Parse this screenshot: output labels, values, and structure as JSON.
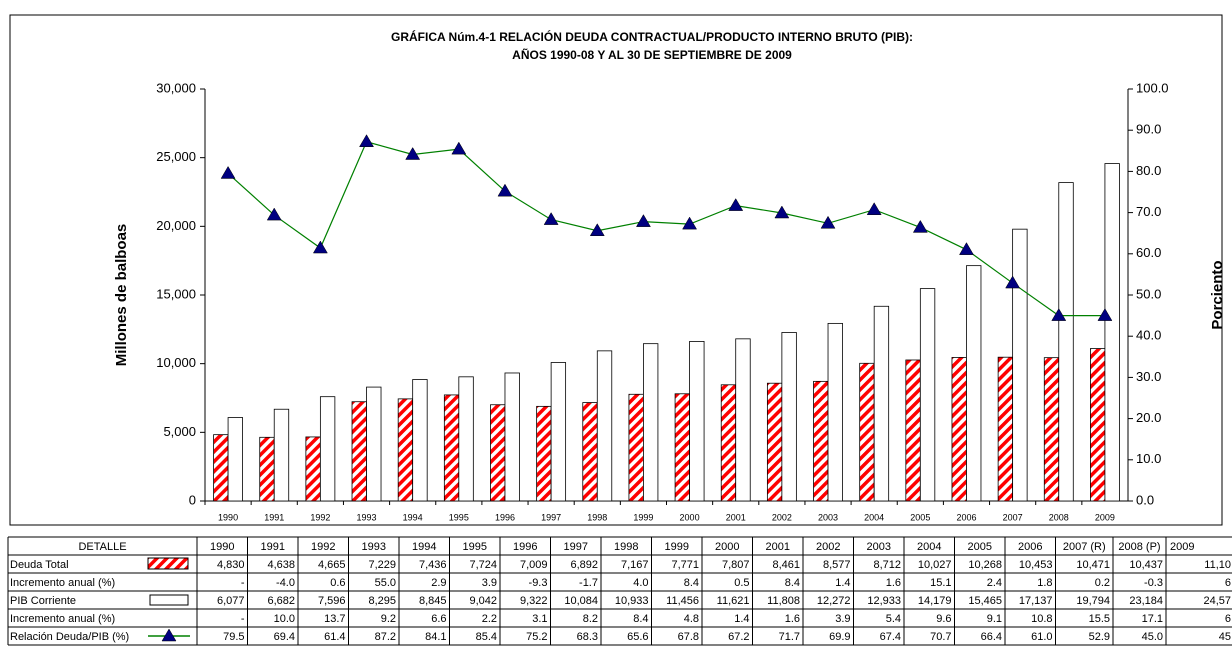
{
  "chart_data": {
    "type": "bar",
    "title": "GRÁFICA Núm.4-1  RELACIÓN DEUDA CONTRACTUAL/PRODUCTO INTERNO BRUTO (PIB):",
    "subtitle": "AÑOS 1990-08 Y AL 30 DE SEPTIEMBRE DE 2009",
    "y_label": "Millones de balboas",
    "y2_label": "Porciento",
    "categories": [
      "1990",
      "1991",
      "1992",
      "1993",
      "1994",
      "1995",
      "1996",
      "1997",
      "1998",
      "1999",
      "2000",
      "2001",
      "2002",
      "2003",
      "2004",
      "2005",
      "2006",
      "2007",
      "2008",
      "2009"
    ],
    "series": [
      {
        "name": "Deuda Total",
        "color": "#ff0000",
        "type": "bar",
        "values": [
          4830,
          4638,
          4665,
          7229,
          7436,
          7724,
          7009,
          6892,
          7167,
          7771,
          7807,
          8461,
          8577,
          8712,
          10027,
          10268,
          10453,
          10471,
          10437,
          11100
        ]
      },
      {
        "name": "PIB Corriente",
        "color": "#ffffff",
        "type": "bar",
        "values": [
          6077,
          6682,
          7596,
          8295,
          8845,
          9042,
          9322,
          10084,
          10933,
          11456,
          11621,
          11808,
          12272,
          12933,
          14179,
          15465,
          17137,
          19794,
          23184,
          24570
        ]
      },
      {
        "name": "Relación Deuda/PIB (%)",
        "color": "#008000",
        "marker_color": "#000080",
        "type": "line",
        "axis": "y2",
        "values": [
          79.5,
          69.4,
          61.4,
          87.2,
          84.1,
          85.4,
          75.2,
          68.3,
          65.6,
          67.8,
          67.2,
          71.7,
          69.9,
          67.4,
          70.7,
          66.4,
          61.0,
          52.9,
          45.0,
          45
        ]
      }
    ],
    "ylim": [
      0,
      30000
    ],
    "yticks": [
      0,
      {
        "value": 5000,
        "label": "5,000"
      },
      {
        "value": 10000,
        "label": "10,000"
      },
      {
        "value": 15000,
        "label": "15,000"
      },
      {
        "value": 20000,
        "label": "20,000"
      },
      {
        "value": 25000,
        "label": "25,000"
      },
      {
        "value": 30000,
        "label": "30,000"
      }
    ],
    "y2lim": [
      0,
      100
    ],
    "y2ticks": [
      {
        "value": 0,
        "label": "0.0"
      },
      {
        "value": 10,
        "label": "10.0"
      },
      {
        "value": 20,
        "label": "20.0"
      },
      {
        "value": 30,
        "label": "30.0"
      },
      {
        "value": 40,
        "label": "40.0"
      },
      {
        "value": 50,
        "label": "50.0"
      },
      {
        "value": 60,
        "label": "60.0"
      },
      {
        "value": 70,
        "label": "70.0"
      },
      {
        "value": 80,
        "label": "80.0"
      },
      {
        "value": 90,
        "label": "90.0"
      },
      {
        "value": 100,
        "label": "100.0"
      }
    ],
    "grid": false
  },
  "table": {
    "headers": [
      "DETALLE",
      "1990",
      "1991",
      "1992",
      "1993",
      "1994",
      "1995",
      "1996",
      "1997",
      "1998",
      "1999",
      "2000",
      "2001",
      "2002",
      "2003",
      "2004",
      "2005",
      "2006",
      "2007 (R)",
      "2008 (P)",
      "2009"
    ],
    "rows": [
      {
        "label": "Deuda Total",
        "cells": [
          "4,830",
          "4,638",
          "4,665",
          "7,229",
          "7,436",
          "7,724",
          "7,009",
          "6,892",
          "7,167",
          "7,771",
          "7,807",
          "8,461",
          "8,577",
          "8,712",
          "10,027",
          "10,268",
          "10,453",
          "10,471",
          "10,437",
          "11,10"
        ]
      },
      {
        "label": "Incremento anual (%)",
        "cells": [
          "-",
          "-4.0",
          "0.6",
          "55.0",
          "2.9",
          "3.9",
          "-9.3",
          "-1.7",
          "4.0",
          "8.4",
          "0.5",
          "8.4",
          "1.4",
          "1.6",
          "15.1",
          "2.4",
          "1.8",
          "0.2",
          "-0.3",
          "6"
        ]
      },
      {
        "label": "PIB Corriente",
        "cells": [
          "6,077",
          "6,682",
          "7,596",
          "8,295",
          "8,845",
          "9,042",
          "9,322",
          "10,084",
          "10,933",
          "11,456",
          "11,621",
          "11,808",
          "12,272",
          "12,933",
          "14,179",
          "15,465",
          "17,137",
          "19,794",
          "23,184",
          "24,57"
        ]
      },
      {
        "label": "Incremento anual (%)",
        "cells": [
          "-",
          "10.0",
          "13.7",
          "9.2",
          "6.6",
          "2.2",
          "3.1",
          "8.2",
          "8.4",
          "4.8",
          "1.4",
          "1.6",
          "3.9",
          "5.4",
          "9.6",
          "9.1",
          "10.8",
          "15.5",
          "17.1",
          "6"
        ]
      },
      {
        "label": "Relación Deuda/PIB (%)",
        "cells": [
          "79.5",
          "69.4",
          "61.4",
          "87.2",
          "84.1",
          "85.4",
          "75.2",
          "68.3",
          "65.6",
          "67.8",
          "67.2",
          "71.7",
          "69.9",
          "67.4",
          "70.7",
          "66.4",
          "61.0",
          "52.9",
          "45.0",
          "45"
        ]
      }
    ]
  }
}
